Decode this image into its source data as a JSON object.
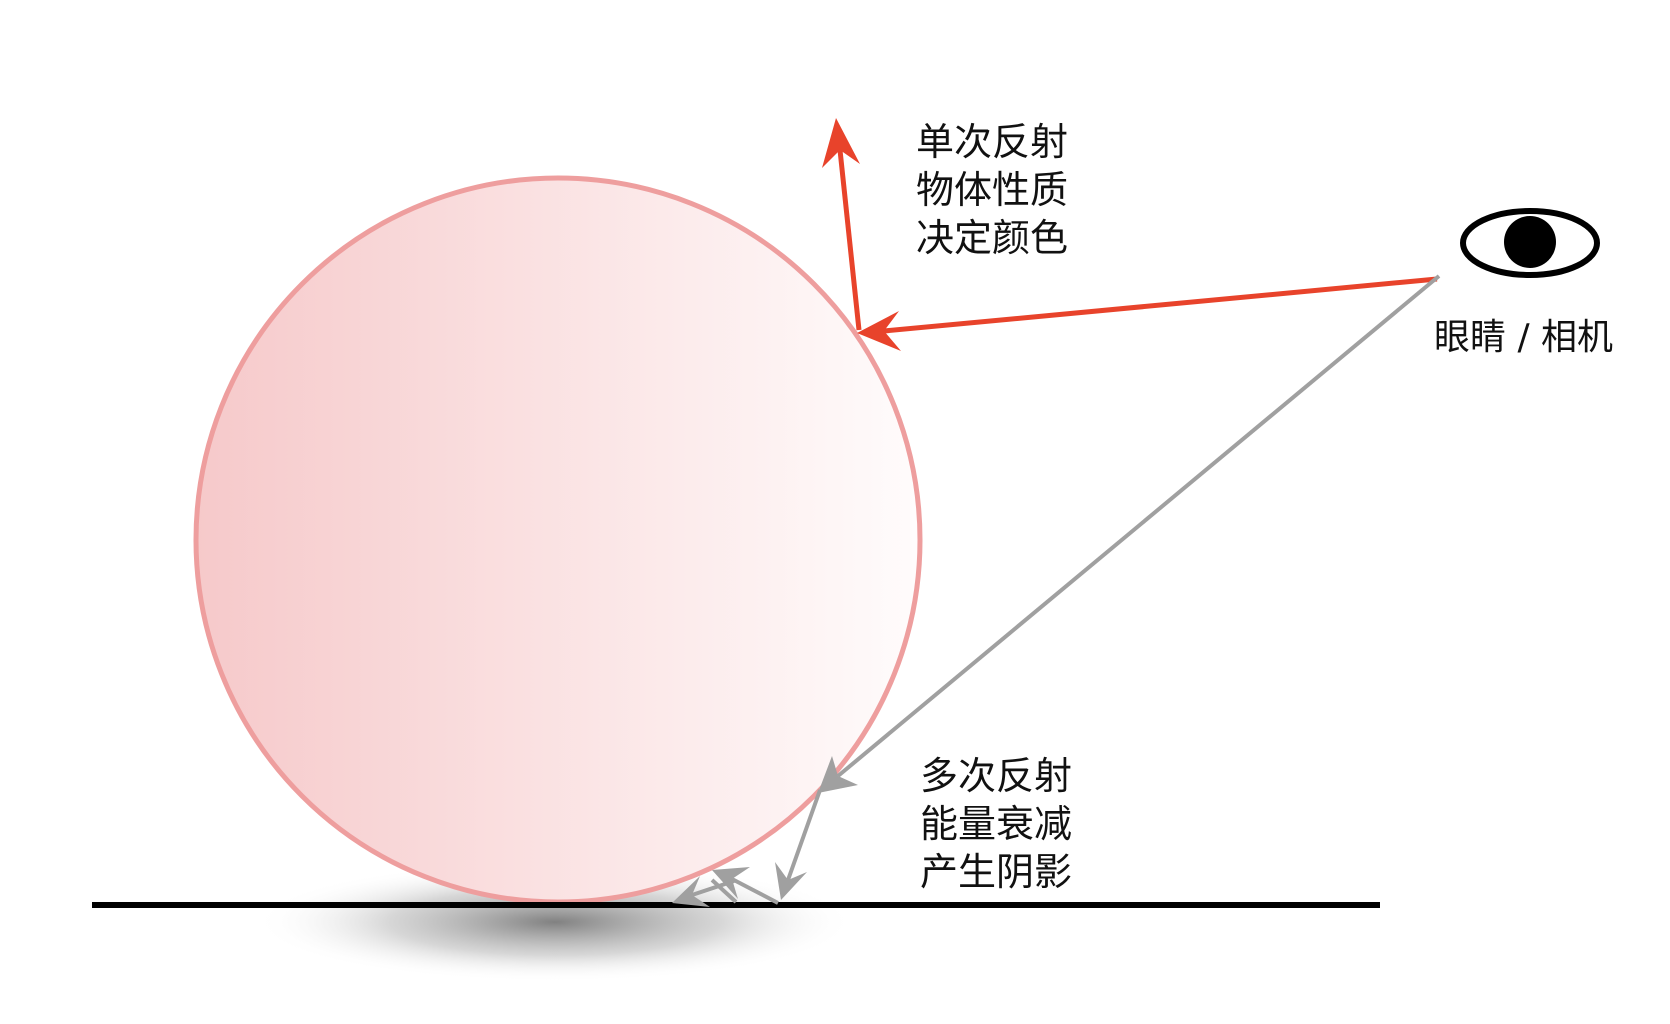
{
  "labels": {
    "single_bounce": [
      "单次反射",
      "物体性质",
      "决定颜色"
    ],
    "multi_bounce": [
      "多次反射",
      "能量衰减",
      "产生阴影"
    ],
    "eye": "眼睛 / 相机"
  },
  "colors": {
    "sphere_stroke": "#ee9e9e",
    "sphere_fill_left": "#f6c9ca",
    "sphere_fill_right": "#fffcfc",
    "primary_ray": "#e8432b",
    "secondary_ray": "#a0a0a0",
    "ground": "#000000",
    "eye": "#000000",
    "shadow": "#8a8a8a"
  },
  "icons": {
    "eye": "eye-icon"
  }
}
